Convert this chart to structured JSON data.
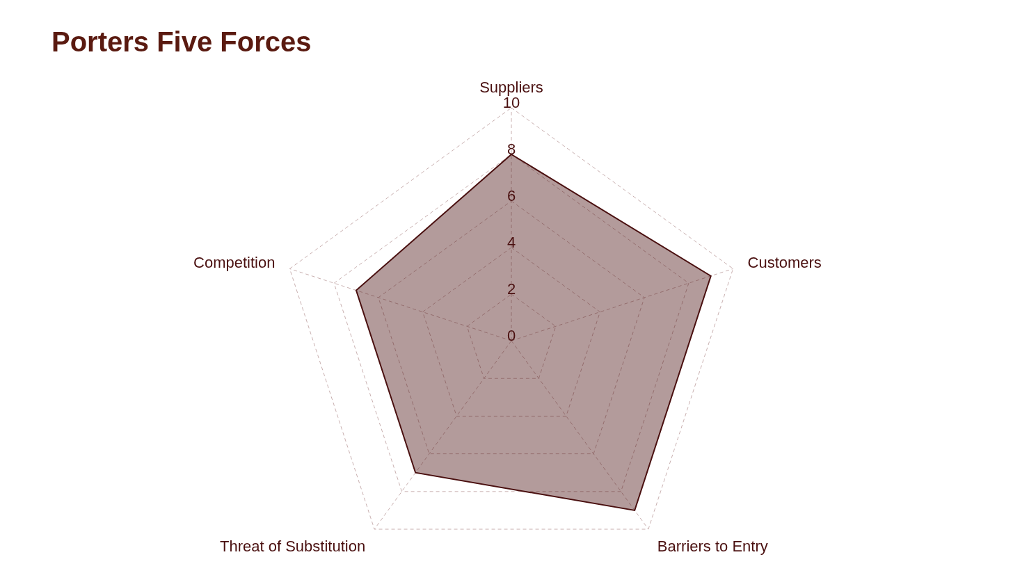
{
  "chart_data": {
    "type": "radar",
    "title": "Porters Five Forces",
    "categories": [
      "Suppliers",
      "Customers",
      "Barriers to Entry",
      "Threat of Substitution",
      "Competition"
    ],
    "series": [
      {
        "color": "#4a1010",
        "values": [
          8,
          9,
          9,
          7,
          7
        ]
      }
    ],
    "ylim": [
      0,
      10
    ],
    "yticks": [
      0,
      2,
      4,
      6,
      8,
      10
    ],
    "grid": true
  }
}
